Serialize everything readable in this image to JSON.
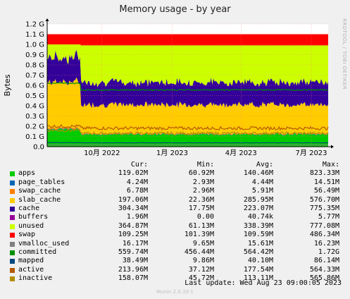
{
  "chart_data": {
    "type": "area",
    "title": "Memory usage - by year",
    "ylabel": "Bytes",
    "vertical_label": "RRDTOOL / TOBI OETIKER",
    "y_ticks": [
      "0.0",
      "0.1 G",
      "0.2 G",
      "0.3 G",
      "0.4 G",
      "0.5 G",
      "0.6 G",
      "0.7 G",
      "0.8 G",
      "0.9 G",
      "1.0 G",
      "1.1 G",
      "1.2 G"
    ],
    "ylim": [
      0,
      1.2
    ],
    "x_ticks": [
      {
        "label": "10月 2022",
        "pos": 0.195
      },
      {
        "label": "1月 2023",
        "pos": 0.445
      },
      {
        "label": "4月 2023",
        "pos": 0.69
      },
      {
        "label": "7月 2023",
        "pos": 0.94
      }
    ],
    "x_start_pos": 0.11,
    "grid": true,
    "stack_before_GB": {
      "apps": 0.17,
      "page_tables": 0.005,
      "swap_cache": 0.01,
      "slab_cache": 0.45,
      "cache": 0.24,
      "unused": 0.15,
      "swap": 0.1
    },
    "stack_after_GB": {
      "apps": 0.12,
      "page_tables": 0.004,
      "swap_cache": 0.007,
      "slab_cache": 0.28,
      "cache": 0.22,
      "unused": 0.33,
      "swap": 0.11
    },
    "committed_GB": [
      0.62,
      0.555
    ],
    "active_GB": [
      0.2,
      0.18
    ],
    "inactive_GB": [
      0.16,
      0.13
    ]
  },
  "legend": {
    "headers": {
      "cur": "Cur:",
      "min": "Min:",
      "avg": "Avg:",
      "max": "Max:"
    },
    "rows": [
      {
        "name": "apps",
        "color": "#00cc00",
        "cur": "119.02M",
        "min": "60.92M",
        "avg": "140.46M",
        "max": "823.33M"
      },
      {
        "name": "page_tables",
        "color": "#0066b3",
        "cur": "4.24M",
        "min": "2.93M",
        "avg": "4.44M",
        "max": "14.51M"
      },
      {
        "name": "swap_cache",
        "color": "#ff8000",
        "cur": "6.78M",
        "min": "2.96M",
        "avg": "5.91M",
        "max": "56.49M"
      },
      {
        "name": "slab_cache",
        "color": "#ffcc00",
        "cur": "197.06M",
        "min": "22.36M",
        "avg": "285.95M",
        "max": "576.70M"
      },
      {
        "name": "cache",
        "color": "#330099",
        "cur": "304.34M",
        "min": "17.75M",
        "avg": "223.07M",
        "max": "775.35M"
      },
      {
        "name": "buffers",
        "color": "#990099",
        "cur": "1.96M",
        "min": "0.00",
        "avg": "40.74k",
        "max": "5.77M"
      },
      {
        "name": "unused",
        "color": "#ccff00",
        "cur": "364.87M",
        "min": "61.13M",
        "avg": "338.39M",
        "max": "777.08M"
      },
      {
        "name": "swap",
        "color": "#ff0000",
        "cur": "109.25M",
        "min": "101.39M",
        "avg": "109.59M",
        "max": "486.34M"
      },
      {
        "name": "vmalloc_used",
        "color": "#808080",
        "cur": "16.17M",
        "min": "9.65M",
        "avg": "15.61M",
        "max": "16.23M"
      },
      {
        "name": "committed",
        "color": "#008f00",
        "cur": "559.74M",
        "min": "456.44M",
        "avg": "564.42M",
        "max": "1.72G"
      },
      {
        "name": "mapped",
        "color": "#00487d",
        "cur": "38.49M",
        "min": "9.86M",
        "avg": "40.10M",
        "max": "86.14M"
      },
      {
        "name": "active",
        "color": "#b35a00",
        "cur": "213.96M",
        "min": "37.12M",
        "avg": "177.54M",
        "max": "564.33M"
      },
      {
        "name": "inactive",
        "color": "#b38f00",
        "cur": "158.07M",
        "min": "45.72M",
        "avg": "113.11M",
        "max": "565.86M"
      }
    ]
  },
  "last_update": "Last update:  Wed Aug 23 09:00:05 2023",
  "footer": "Munin 2.0.33-1"
}
